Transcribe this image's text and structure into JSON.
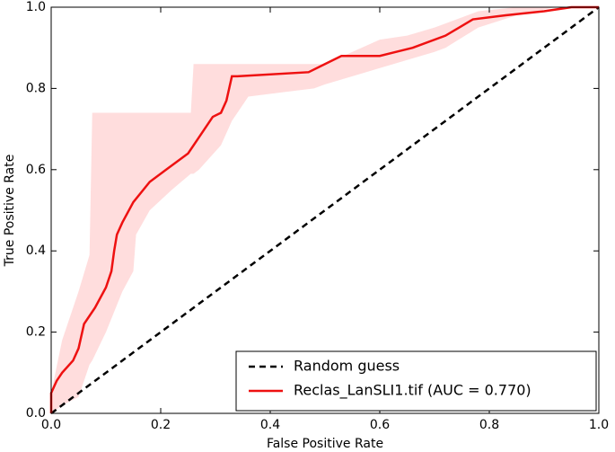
{
  "chart_data": {
    "type": "line",
    "xlabel": "False Positive Rate",
    "ylabel": "True Positive Rate",
    "xlim": [
      0,
      1
    ],
    "ylim": [
      0,
      1
    ],
    "xticks": [
      {
        "value": 0,
        "label": "0.0"
      },
      0.2,
      0.4,
      0.6,
      0.8,
      {
        "value": 1,
        "label": "1.0"
      }
    ],
    "yticks": [
      {
        "value": 0,
        "label": "0.0"
      },
      0.2,
      0.4,
      0.6,
      0.8,
      {
        "value": 1,
        "label": "1.0"
      }
    ],
    "grid": false,
    "legend": "lower right",
    "series": [
      {
        "name": "Random guess",
        "color": "#000000",
        "dash": true,
        "x": [
          0,
          1
        ],
        "values": [
          0,
          1
        ]
      },
      {
        "name": "Reclas_LanSLI1.tif (AUC = 0.770)",
        "color": "#ee1111",
        "dash": false,
        "x": [
          0,
          0,
          0.01,
          0.02,
          0.04,
          0.05,
          0.06,
          0.08,
          0.1,
          0.11,
          0.115,
          0.12,
          0.13,
          0.15,
          0.18,
          0.21,
          0.25,
          0.27,
          0.295,
          0.31,
          0.32,
          0.33,
          0.34,
          0.47,
          0.5,
          0.53,
          0.6,
          0.63,
          0.66,
          0.72,
          0.77,
          0.83,
          0.9,
          0.95,
          1
        ],
        "values": [
          0,
          0.05,
          0.08,
          0.1,
          0.13,
          0.16,
          0.22,
          0.26,
          0.31,
          0.35,
          0.4,
          0.44,
          0.47,
          0.52,
          0.57,
          0.6,
          0.64,
          0.68,
          0.73,
          0.74,
          0.77,
          0.83,
          0.83,
          0.84,
          0.86,
          0.88,
          0.88,
          0.89,
          0.9,
          0.93,
          0.97,
          0.98,
          0.99,
          1,
          1
        ]
      }
    ],
    "band": {
      "color": "#ffdddd",
      "x": [
        0,
        0.02,
        0.05,
        0.07,
        0.075,
        0.1,
        0.13,
        0.15,
        0.155,
        0.18,
        0.22,
        0.255,
        0.26,
        0.27,
        0.31,
        0.33,
        0.36,
        0.42,
        0.48,
        0.5,
        0.55,
        0.6,
        0.65,
        0.7,
        0.72,
        0.78,
        0.85,
        0.92,
        1
      ],
      "upper": [
        0.05,
        0.18,
        0.3,
        0.39,
        0.74,
        0.74,
        0.74,
        0.74,
        0.74,
        0.74,
        0.74,
        0.74,
        0.86,
        0.86,
        0.86,
        0.86,
        0.86,
        0.86,
        0.86,
        0.86,
        0.89,
        0.92,
        0.93,
        0.95,
        0.96,
        0.99,
        1,
        1,
        1
      ],
      "lower": [
        0,
        0.02,
        0.04,
        0.12,
        0.13,
        0.2,
        0.3,
        0.35,
        0.44,
        0.5,
        0.55,
        0.59,
        0.59,
        0.6,
        0.66,
        0.72,
        0.78,
        0.79,
        0.8,
        0.81,
        0.83,
        0.85,
        0.87,
        0.89,
        0.9,
        0.95,
        0.98,
        1,
        1
      ]
    }
  }
}
